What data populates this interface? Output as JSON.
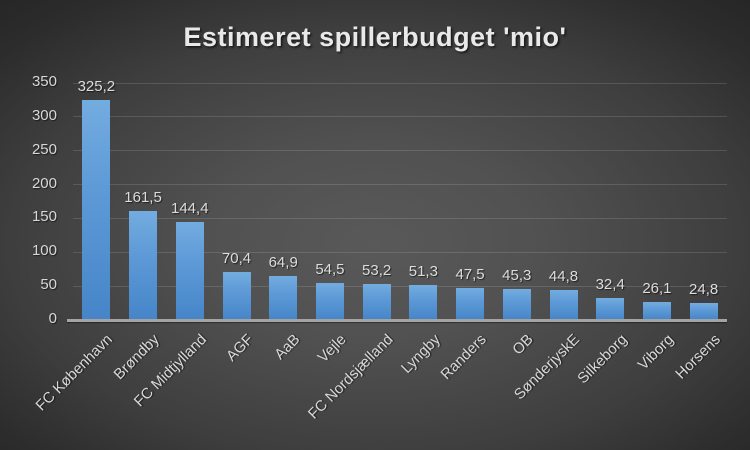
{
  "chart_data": {
    "type": "bar",
    "title": "Estimeret spillerbudget 'mio'",
    "categories": [
      "FC København",
      "Brøndby",
      "FC Midtjylland",
      "AGF",
      "AaB",
      "Vejle",
      "FC Nordsjælland",
      "Lyngby",
      "Randers",
      "OB",
      "SønderjyskE",
      "Silkeborg",
      "Viborg",
      "Horsens"
    ],
    "values": [
      325.2,
      161.5,
      144.4,
      70.4,
      64.9,
      54.5,
      53.2,
      51.3,
      47.5,
      45.3,
      44.8,
      32.4,
      26.1,
      24.8
    ],
    "value_labels": [
      "325,2",
      "161,5",
      "144,4",
      "70,4",
      "64,9",
      "54,5",
      "53,2",
      "51,3",
      "47,5",
      "45,3",
      "44,8",
      "32,4",
      "26,1",
      "24,8"
    ],
    "xlabel": "",
    "ylabel": "",
    "ylim": [
      0,
      350
    ],
    "ytick_step": 50,
    "ytick_labels": [
      "0",
      "50",
      "100",
      "150",
      "200",
      "250",
      "300",
      "350"
    ],
    "grid": true,
    "legend": false,
    "colors": {
      "bar_top": "#73ACDF",
      "bar_bottom": "#4585C8",
      "background_center": "#595959",
      "background_edge": "#262626",
      "text": "#D8D8D8",
      "title_text": "#E9E9E9",
      "axis_line": "#A4A4A4",
      "gridline": "rgba(255,255,255,0.13)"
    }
  }
}
